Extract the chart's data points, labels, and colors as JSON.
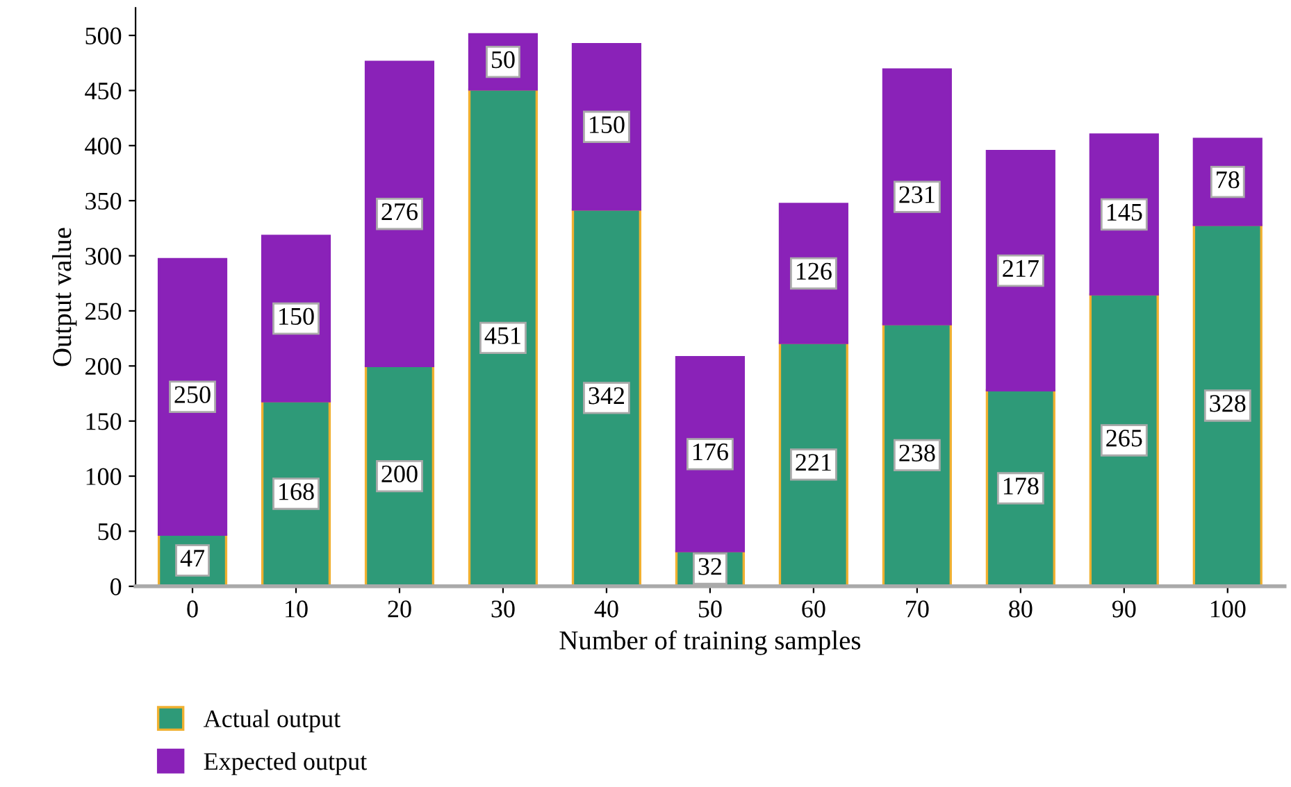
{
  "chart_data": {
    "type": "bar",
    "stacked": true,
    "xlabel": "Number of training samples",
    "ylabel": "Output value",
    "categories": [
      "0",
      "10",
      "20",
      "30",
      "40",
      "50",
      "60",
      "70",
      "80",
      "90",
      "100"
    ],
    "series": [
      {
        "name": "Actual output",
        "color": "#2e9a78",
        "values": [
          47,
          168,
          200,
          451,
          342,
          32,
          221,
          238,
          178,
          265,
          328
        ]
      },
      {
        "name": "Expected output",
        "color": "#8a22b8",
        "values": [
          250,
          150,
          276,
          50,
          150,
          176,
          126,
          231,
          217,
          145,
          78
        ]
      }
    ],
    "ylim": [
      0,
      525
    ],
    "yticks": [
      0,
      50,
      100,
      150,
      200,
      250,
      300,
      350,
      400,
      450,
      500
    ],
    "data_labels": true,
    "legend": "bottom left",
    "grid": false
  }
}
